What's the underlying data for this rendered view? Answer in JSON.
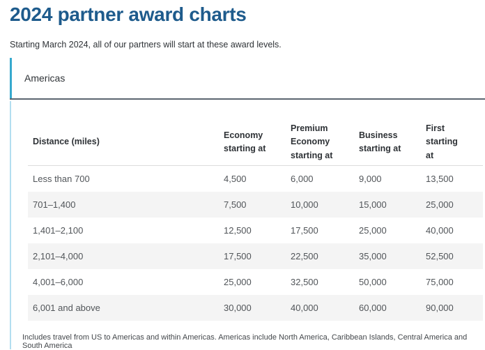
{
  "page": {
    "title": "2024 partner award charts",
    "subtitle": "Starting March 2024, all of our partners will start at these award levels."
  },
  "tabs": [
    {
      "label": "Americas",
      "selected": true
    }
  ],
  "table": {
    "columns": [
      "Distance (miles)",
      "Economy starting at",
      "Premium Economy starting at",
      "Business starting at",
      "First starting at"
    ],
    "rows": [
      {
        "distance": "Less than 700",
        "economy": "4,500",
        "premium_economy": "6,000",
        "business": "9,000",
        "first": "13,500"
      },
      {
        "distance": "701–1,400",
        "economy": "7,500",
        "premium_economy": "10,000",
        "business": "15,000",
        "first": "25,000"
      },
      {
        "distance": "1,401–2,100",
        "economy": "12,500",
        "premium_economy": "17,500",
        "business": "25,000",
        "first": "40,000"
      },
      {
        "distance": "2,101–4,000",
        "economy": "17,500",
        "premium_economy": "22,500",
        "business": "35,000",
        "first": "52,500"
      },
      {
        "distance": "4,001–6,000",
        "economy": "25,000",
        "premium_economy": "32,500",
        "business": "50,000",
        "first": "75,000"
      },
      {
        "distance": "6,001 and above",
        "economy": "30,000",
        "premium_economy": "40,000",
        "business": "60,000",
        "first": "90,000"
      }
    ]
  },
  "footnote": "Includes travel from US to Americas and within Americas. Americas include North America, Caribbean Islands, Central America and South America",
  "colors": {
    "title_blue": "#1e5b8c",
    "tab_accent_teal": "#36a9ce",
    "tab_underline_slate": "#5b6570",
    "panel_border_light_blue": "#b3def0",
    "row_stripe": "#f4f4f4",
    "header_separator": "#dcdcdc"
  }
}
